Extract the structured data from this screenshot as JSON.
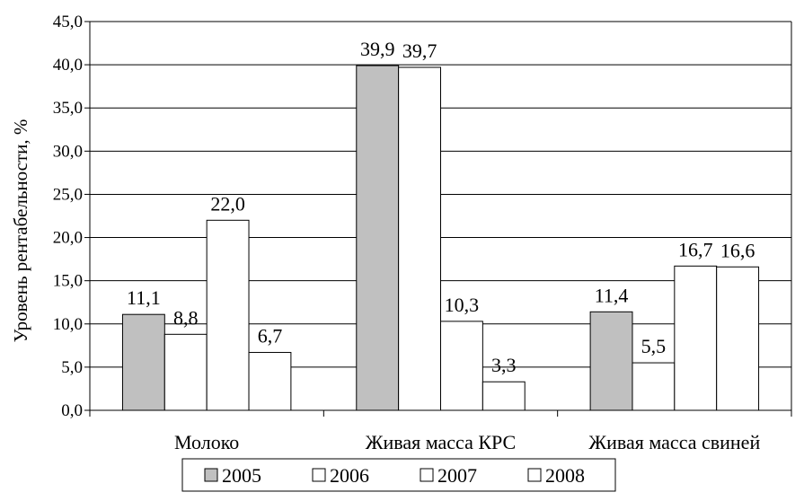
{
  "chart_data": {
    "type": "bar",
    "title": "",
    "xlabel": "",
    "ylabel": "Уровень рентабельности, %",
    "ylim": [
      0,
      45
    ],
    "ytick_step": 5,
    "ytick_labels": [
      "0,0",
      "5,0",
      "10,0",
      "15,0",
      "20,0",
      "25,0",
      "30,0",
      "35,0",
      "40,0",
      "45,0"
    ],
    "grid": "horizontal",
    "legend_position": "bottom",
    "categories": [
      "Молоко",
      "Живая масса КРС",
      "Живая масса свиней"
    ],
    "series": [
      {
        "name": "2005",
        "values": [
          11.1,
          39.9,
          11.4
        ],
        "labels": [
          "11,1",
          "39,9",
          "11,4"
        ],
        "color": "#c0c0c0"
      },
      {
        "name": "2006",
        "values": [
          8.8,
          39.7,
          5.5
        ],
        "labels": [
          "8,8",
          "39,7",
          "5,5"
        ],
        "color": "#ffffff"
      },
      {
        "name": "2007",
        "values": [
          22.0,
          10.3,
          16.7
        ],
        "labels": [
          "22,0",
          "10,3",
          "16,7"
        ],
        "color": "#ffffff"
      },
      {
        "name": "2008",
        "values": [
          6.7,
          3.3,
          16.6
        ],
        "labels": [
          "6,7",
          "3,3",
          "16,6"
        ],
        "color": "#ffffff"
      }
    ]
  }
}
